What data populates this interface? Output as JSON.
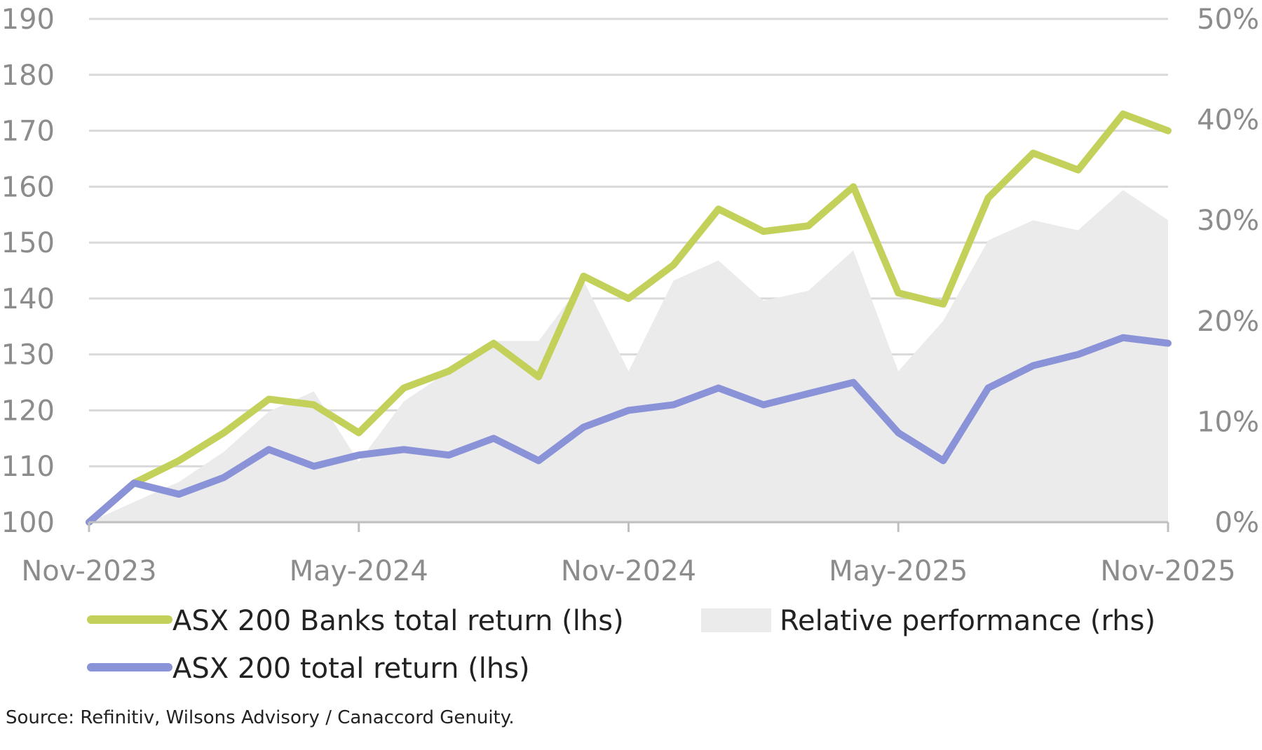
{
  "chart_data": {
    "type": "line",
    "title": "",
    "x_ticks": [
      "Nov-2023",
      "May-2024",
      "Nov-2024",
      "May-2025",
      "Nov-2025"
    ],
    "y_left_ticks": [
      "100",
      "110",
      "120",
      "130",
      "140",
      "150",
      "160",
      "170",
      "180",
      "190"
    ],
    "y_right_ticks": [
      "0%",
      "10%",
      "20%",
      "30%",
      "40%",
      "50%"
    ],
    "y_left_range": [
      100,
      190
    ],
    "y_right_range": [
      0,
      50
    ],
    "grid": "horizontal",
    "legend_position": "bottom",
    "x": [
      0,
      1,
      2,
      3,
      4,
      5,
      6,
      7,
      8,
      9,
      10,
      11,
      12,
      13,
      14,
      15,
      16,
      17,
      18,
      19,
      20,
      21,
      22,
      23,
      24
    ],
    "series": [
      {
        "name": "ASX 200 Banks total return (lhs)",
        "color": "#c3d15a",
        "kind": "line",
        "axis": "left",
        "values": [
          100,
          107,
          111,
          116,
          122,
          121,
          116,
          124,
          127,
          132,
          126,
          144,
          140,
          146,
          156,
          152,
          153,
          160,
          141,
          139,
          158,
          166,
          163,
          173,
          170
        ]
      },
      {
        "name": "ASX 200 total return (lhs)",
        "color": "#8b93d8",
        "kind": "line",
        "axis": "right-none",
        "values": [
          100,
          107,
          105,
          108,
          113,
          110,
          112,
          113,
          112,
          115,
          111,
          117,
          120,
          121,
          124,
          121,
          123,
          125,
          116,
          111,
          124,
          128,
          130,
          133,
          132
        ]
      },
      {
        "name": "Relative performance (rhs)",
        "color": "#ebebeb",
        "kind": "area",
        "axis": "right",
        "values": [
          0,
          2,
          4,
          7,
          11,
          13,
          6,
          12,
          15,
          18,
          18,
          24,
          15,
          24,
          26,
          22,
          23,
          27,
          15,
          20,
          28,
          30,
          29,
          33,
          30
        ]
      }
    ],
    "source": "Source: Refinitiv, Wilsons Advisory / Canaccord Genuity."
  }
}
